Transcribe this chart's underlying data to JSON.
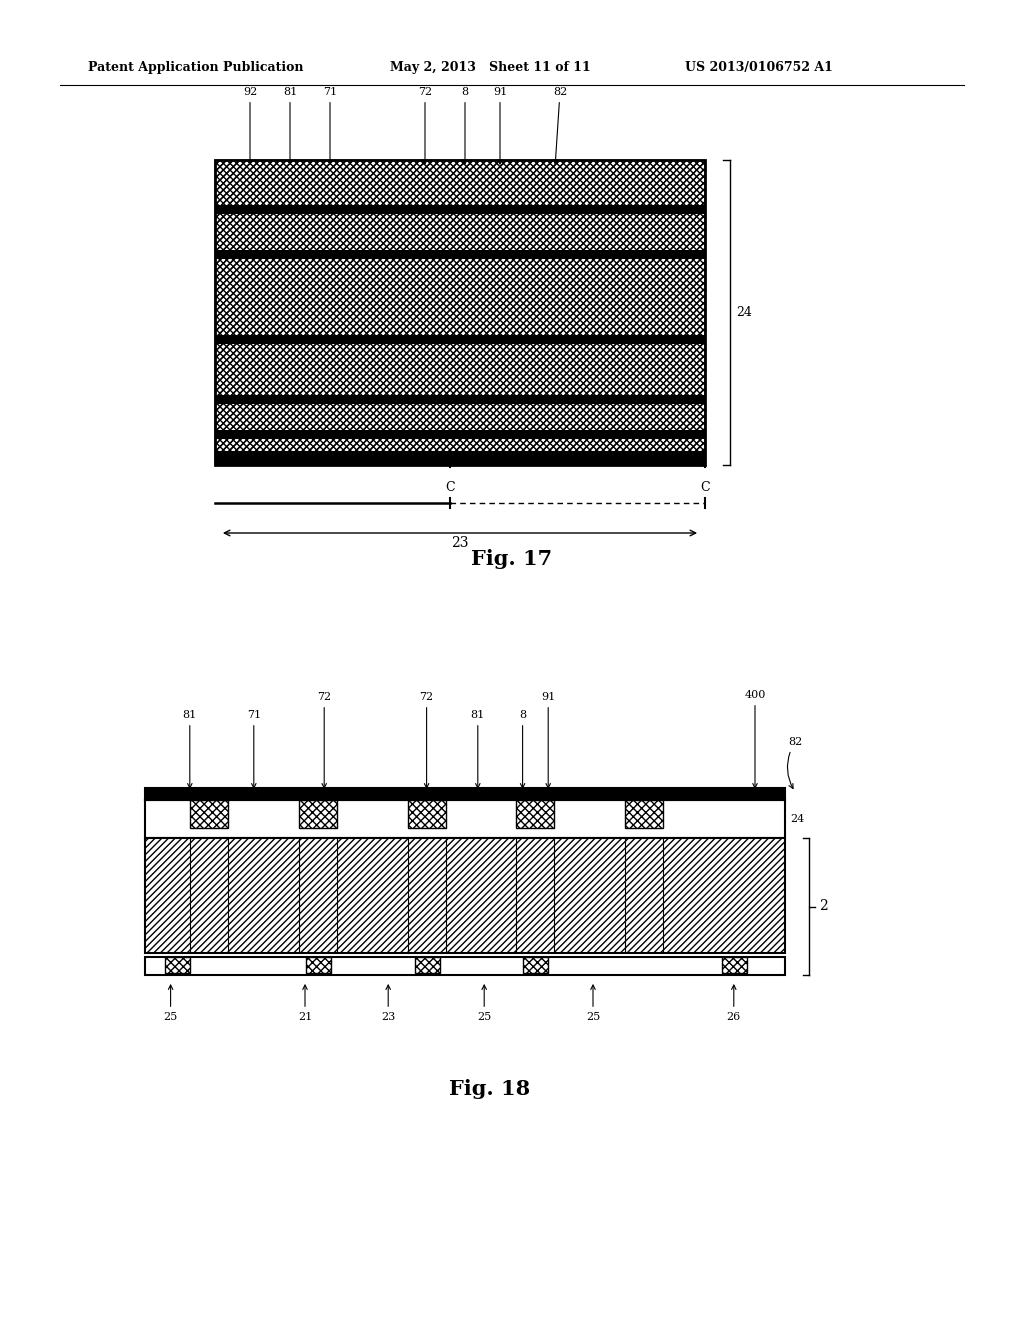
{
  "header_left": "Patent Application Publication",
  "header_mid": "May 2, 2013   Sheet 11 of 11",
  "header_right": "US 2013/0106752 A1",
  "fig17_label": "Fig. 17",
  "fig18_label": "Fig. 18",
  "bg_color": "#ffffff",
  "line_color": "#000000",
  "hatch_color": "#000000"
}
